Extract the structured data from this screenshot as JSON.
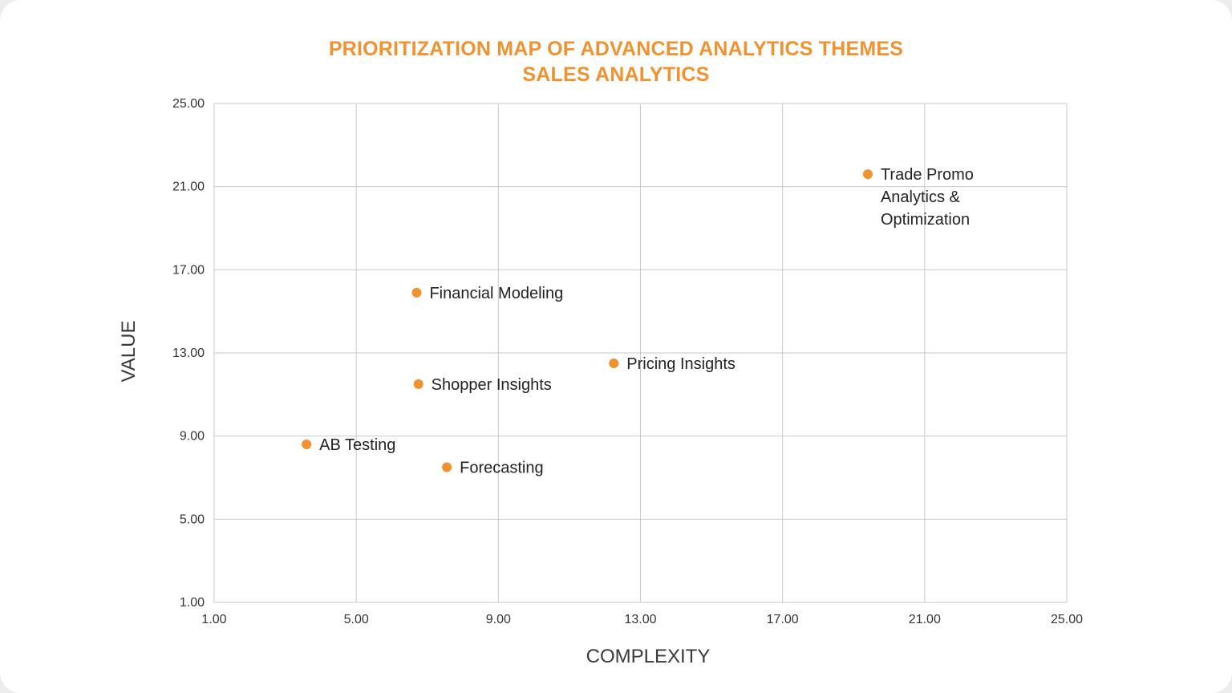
{
  "chart_data": {
    "type": "scatter",
    "title": "PRIORITIZATION MAP OF ADVANCED ANALYTICS THEMES",
    "subtitle": "SALES ANALYTICS",
    "xlabel": "COMPLEXITY",
    "ylabel": "VALUE",
    "xlim": [
      1,
      25
    ],
    "ylim": [
      1,
      25
    ],
    "xticks": [
      "1.00",
      "5.00",
      "9.00",
      "13.00",
      "17.00",
      "21.00",
      "25.00"
    ],
    "yticks": [
      "1.00",
      "5.00",
      "9.00",
      "13.00",
      "17.00",
      "21.00",
      "25.00"
    ],
    "xtick_values": [
      1,
      5,
      9,
      13,
      17,
      21,
      25
    ],
    "ytick_values": [
      1,
      5,
      9,
      13,
      17,
      21,
      25
    ],
    "grid": true,
    "marker_color": "#f0922f",
    "points": [
      {
        "label": [
          "Trade Promo",
          "Analytics &",
          "Optimization"
        ],
        "x": 19.4,
        "y": 21.6
      },
      {
        "label": [
          "Financial Modeling"
        ],
        "x": 6.7,
        "y": 15.9
      },
      {
        "label": [
          "Pricing Insights"
        ],
        "x": 12.25,
        "y": 12.5
      },
      {
        "label": [
          "Shopper Insights"
        ],
        "x": 6.75,
        "y": 11.5
      },
      {
        "label": [
          "AB Testing"
        ],
        "x": 3.6,
        "y": 8.6
      },
      {
        "label": [
          "Forecasting"
        ],
        "x": 7.55,
        "y": 7.5
      }
    ]
  }
}
